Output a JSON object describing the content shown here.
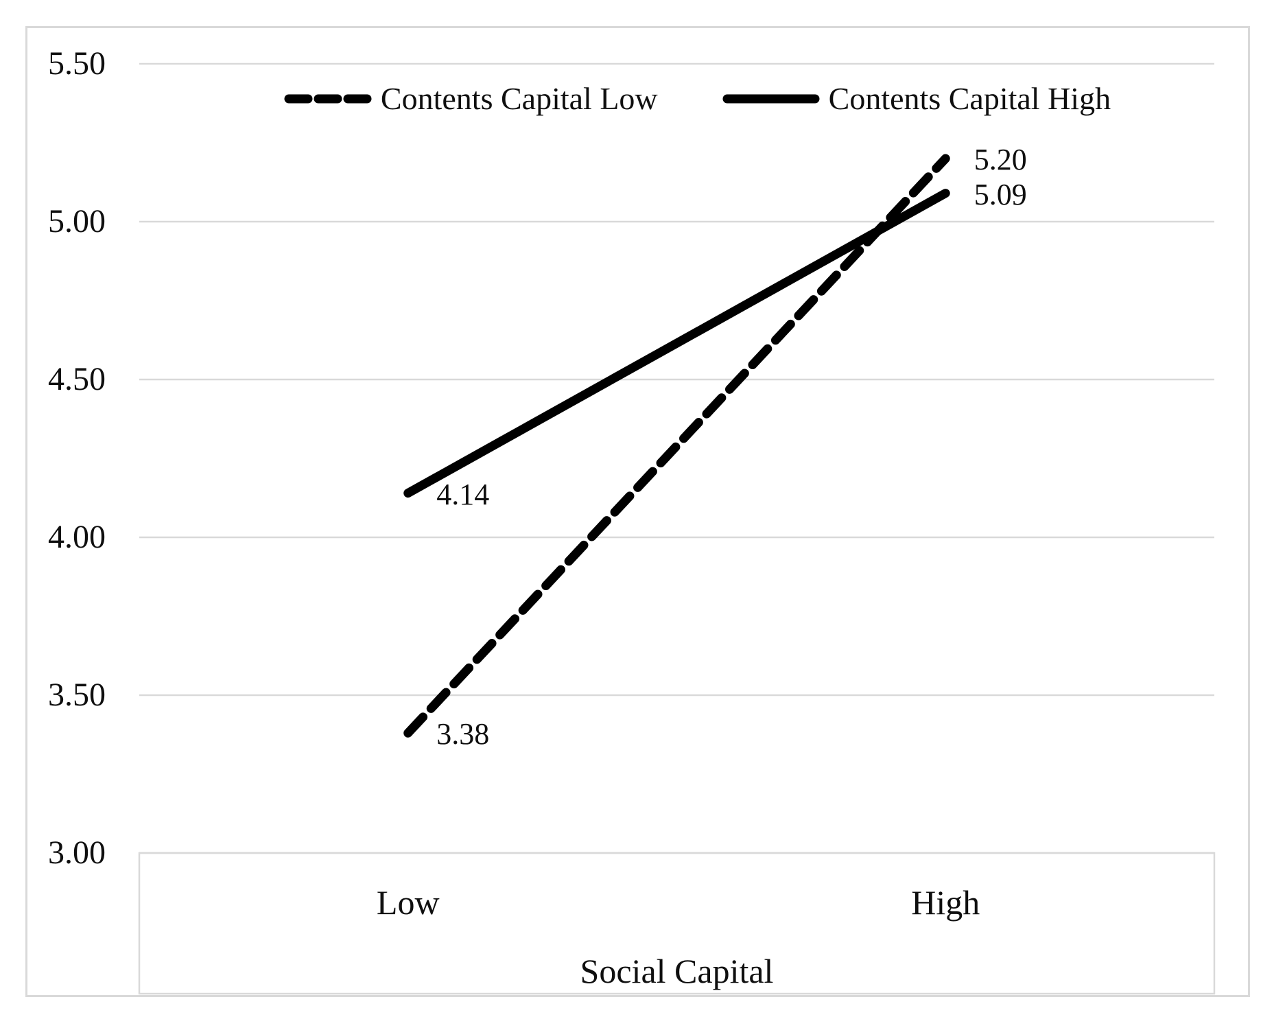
{
  "chart_data": {
    "type": "line",
    "categories": [
      "Low",
      "High"
    ],
    "series": [
      {
        "name": "Contents Capital Low",
        "style": "dashed",
        "values": [
          3.38,
          5.2
        ],
        "point_labels": [
          "3.38",
          "5.20"
        ]
      },
      {
        "name": "Contents Capital High",
        "style": "solid",
        "values": [
          4.14,
          5.09
        ],
        "point_labels": [
          "4.14",
          "5.09"
        ]
      }
    ],
    "xlabel": "Social Capital",
    "ylabel": "",
    "ylim": [
      3.0,
      5.5
    ],
    "ytick_step": 0.5,
    "yticks": [
      "5.50",
      "5.00",
      "4.50",
      "4.00",
      "3.50",
      "3.00"
    ],
    "grid": true,
    "legend_position": "top-center",
    "colors": {
      "series": "#000000",
      "grid": "#d9d9d9",
      "border": "#d9d9d9",
      "text": "#0f0f0f",
      "background": "#ffffff"
    }
  }
}
